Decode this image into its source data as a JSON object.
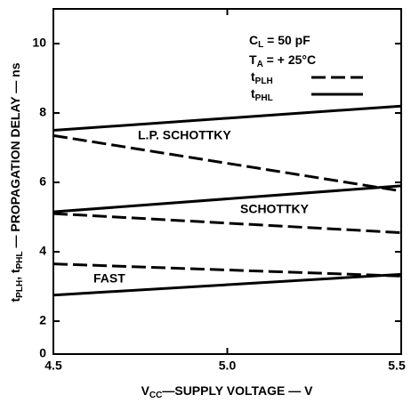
{
  "chart_data": {
    "type": "line",
    "ylabel": [
      "t",
      "PLH",
      ", t",
      "PHL",
      " — PROPAGATION DELAY — ns"
    ],
    "xlabel": [
      "V",
      "CC",
      "—SUPPLY VOLTAGE — V"
    ],
    "annotations": [
      [
        "C",
        "L",
        " = 50 pF"
      ],
      [
        "T",
        "A",
        " = + 25°C"
      ]
    ],
    "legend": [
      {
        "text": [
          "t",
          "PLH"
        ],
        "dash": true
      },
      {
        "text": [
          "t",
          "PHL"
        ],
        "dash": false
      }
    ],
    "color": "#000000",
    "x": [
      4.5,
      5.5
    ],
    "families": [
      {
        "label": "L.P. SCHOTTKY",
        "series": [
          {
            "values": [
              7.35,
              5.75
            ]
          },
          {
            "values": [
              7.5,
              8.2
            ]
          }
        ]
      },
      {
        "label": "SCHOTTKY",
        "series": [
          {
            "values": [
              5.1,
              4.55
            ]
          },
          {
            "values": [
              5.15,
              5.9
            ]
          }
        ]
      },
      {
        "label": "FAST",
        "series": [
          {
            "values": [
              3.65,
              3.3
            ]
          },
          {
            "values": [
              2.75,
              3.35
            ]
          }
        ]
      }
    ],
    "xlim": [
      4.5,
      5.5
    ],
    "xticks": [
      4.5,
      {
        "value": 5,
        "label": "5.0"
      },
      5.5
    ],
    "ylim": [
      0,
      11
    ],
    "yticks": [
      0,
      2,
      4,
      6,
      8,
      10
    ]
  }
}
